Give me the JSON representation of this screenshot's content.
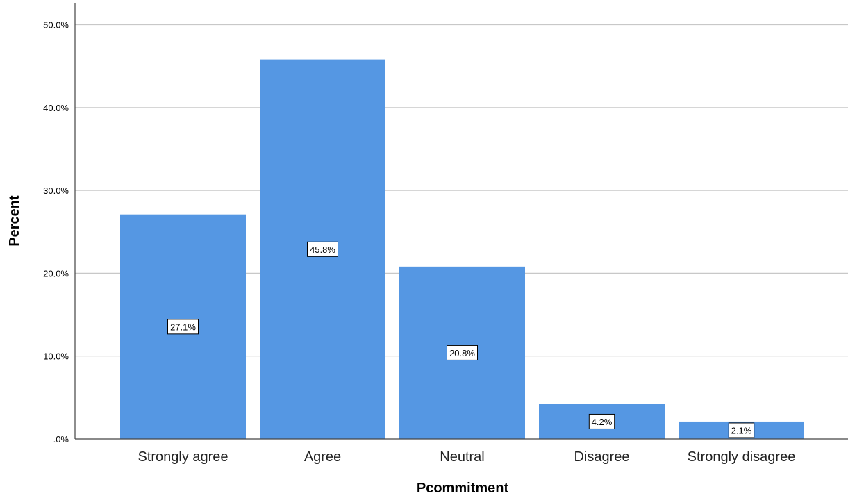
{
  "chart_data": {
    "type": "bar",
    "categories": [
      "Strongly agree",
      "Agree",
      "Neutral",
      "Disagree",
      "Strongly disagree"
    ],
    "values": [
      27.1,
      45.8,
      20.8,
      4.2,
      2.1
    ],
    "data_labels": [
      "27.1%",
      "45.8%",
      "20.8%",
      "4.2%",
      "2.1%"
    ],
    "xlabel": "Pcommitment",
    "ylabel": "Percent",
    "ylim": [
      0,
      50
    ],
    "yticks": [
      0,
      10,
      20,
      30,
      40,
      50
    ],
    "ytick_labels": [
      ".0%",
      "10.0%",
      "20.0%",
      "30.0%",
      "40.0%",
      "50.0%"
    ],
    "grid": true,
    "bar_color": "#5597e3"
  }
}
